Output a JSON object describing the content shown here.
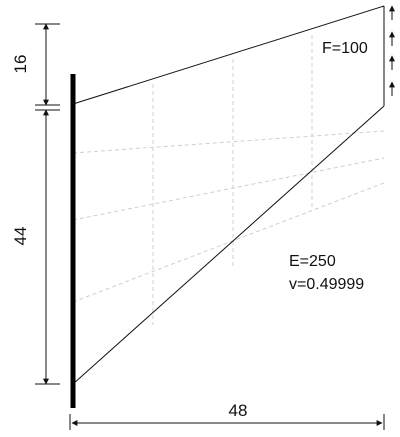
{
  "dimensions": {
    "top_height": "16",
    "left_height": "44",
    "width": "48"
  },
  "labels": {
    "force": "F=100",
    "modulus": "E=250",
    "poisson": "v=0.49999"
  },
  "colors": {
    "line": "#111111",
    "grid": "#d0d0d0",
    "wall": "#000000"
  }
}
